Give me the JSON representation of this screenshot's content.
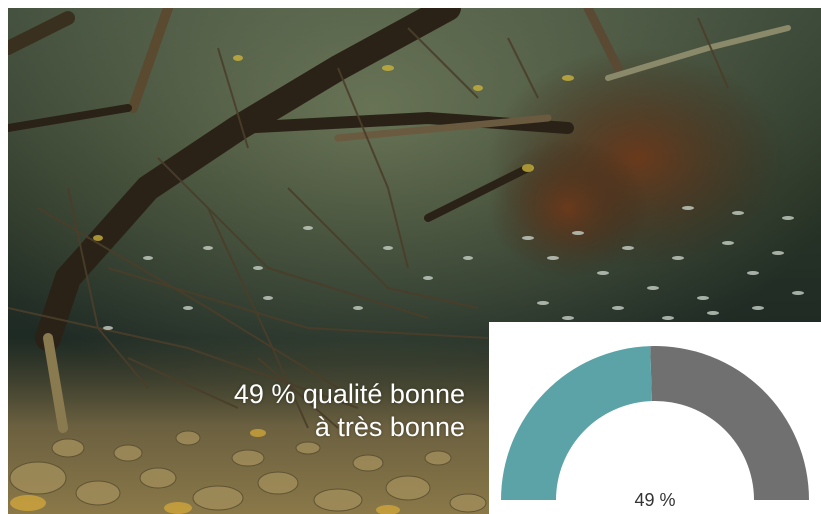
{
  "caption": {
    "line1": "49 % qualité bonne",
    "line2": "à très bonne"
  },
  "chart_data": {
    "type": "gauge",
    "value": 49,
    "max": 100,
    "value_label": "49 %",
    "colors": {
      "filled": "#5ba3a6",
      "remaining": "#707070"
    }
  },
  "photo": {
    "subject": "underwater river scene with fallen branches, roots and a school of small fish over pebbles"
  }
}
